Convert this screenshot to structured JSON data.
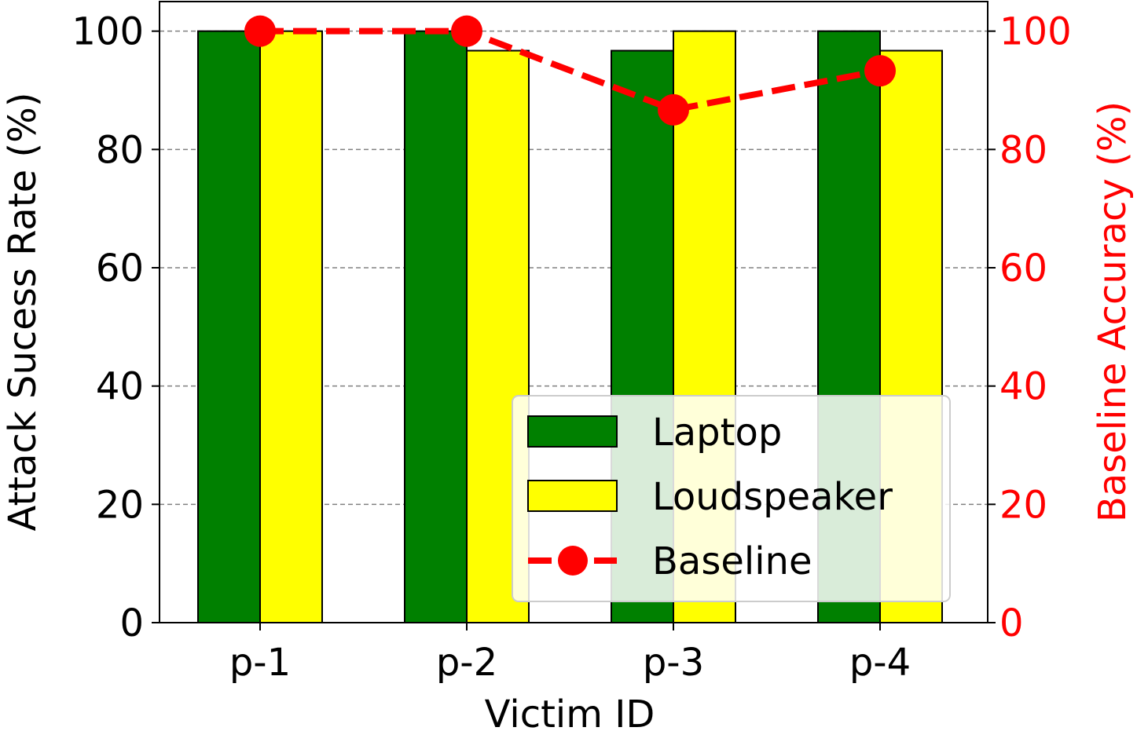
{
  "chart_data": {
    "type": "bar",
    "categories": [
      "p-1",
      "p-2",
      "p-3",
      "p-4"
    ],
    "series": [
      {
        "name": "Laptop",
        "values": [
          100,
          100,
          96.7,
          100
        ],
        "color": "#008000",
        "axis": "left",
        "kind": "bar"
      },
      {
        "name": "Loudspeaker",
        "values": [
          100,
          96.7,
          100,
          96.7
        ],
        "color": "#ffff00",
        "axis": "left",
        "kind": "bar"
      },
      {
        "name": "Baseline",
        "values": [
          100,
          100,
          86.7,
          93.3
        ],
        "color": "#ff0000",
        "axis": "right",
        "kind": "line"
      }
    ],
    "xlabel": "Victim ID",
    "ylabel": "Attack Sucess Rate (%)",
    "y2label": "Baseline Accuracy (%)",
    "ylim": [
      0,
      105
    ],
    "y2lim": [
      0,
      105
    ],
    "yticks": [
      "0",
      "20",
      "40",
      "60",
      "80",
      "100"
    ],
    "y2ticks": [
      "0",
      "20",
      "40",
      "60",
      "80",
      "100"
    ],
    "grid": "horizontal-dashed",
    "legend_position": "lower-right",
    "right_axis_color": "#ff0000"
  }
}
